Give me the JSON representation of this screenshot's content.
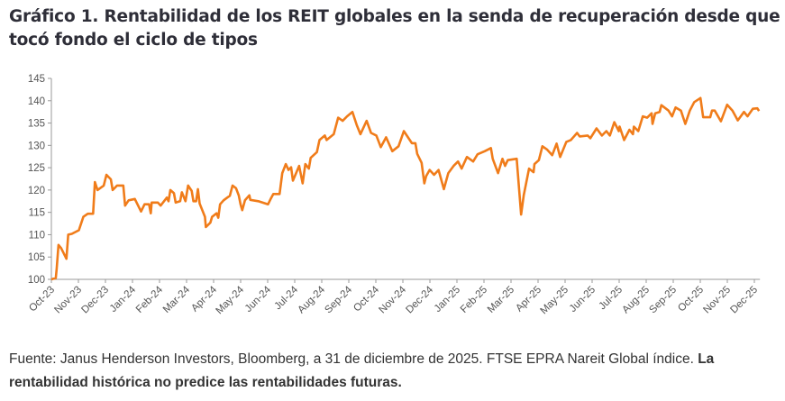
{
  "title": "Gráfico 1. Rentabilidad de los REIT globales en la senda de recuperación desde que tocó fondo el ciclo de tipos",
  "footer": {
    "source": "Fuente: Janus Henderson Investors, Bloomberg, a 31 de diciembre de 2025. FTSE EPRA Nareit Global índice. ",
    "disclaimer": "La rentabilidad histórica no predice las rentabilidades futuras."
  },
  "chart_data": {
    "type": "line",
    "title": "",
    "xlabel": "",
    "ylabel": "",
    "ylim": [
      100,
      145
    ],
    "yticks": [
      100,
      105,
      110,
      115,
      120,
      125,
      130,
      135,
      140,
      145
    ],
    "xlim": [
      "2023-10-01",
      "2025-12-06"
    ],
    "xtick_labels": [
      "Oct-23",
      "Nov-23",
      "Dec-23",
      "Jan-24",
      "Feb-24",
      "Mar-24",
      "Apr-24",
      "May-24",
      "Jun-24",
      "Jul-24",
      "Aug-24",
      "Sep-24",
      "Oct-24",
      "Nov-24",
      "Dec-24",
      "Jan-25",
      "Feb-25",
      "Mar-25",
      "Apr-25",
      "May-25",
      "Jun-25",
      "Jul-25",
      "Aug-25",
      "Sep-25",
      "Oct-25",
      "Nov-25",
      "Dec-25"
    ],
    "grid": false,
    "line_color": "#f07c1a",
    "series": [
      {
        "points": [
          [
            "2023-10-01",
            100
          ],
          [
            "2023-10-06",
            100.3
          ],
          [
            "2023-10-07",
            102.4
          ],
          [
            "2023-10-09",
            107.7
          ],
          [
            "2023-10-12",
            107
          ],
          [
            "2023-10-15",
            105.8
          ],
          [
            "2023-10-18",
            104.6
          ],
          [
            "2023-10-20",
            110
          ],
          [
            "2023-10-24",
            110.2
          ],
          [
            "2023-11-01",
            111
          ],
          [
            "2023-11-06",
            114
          ],
          [
            "2023-11-11",
            114.7
          ],
          [
            "2023-11-17",
            114.7
          ],
          [
            "2023-11-19",
            121.8
          ],
          [
            "2023-11-22",
            120
          ],
          [
            "2023-11-29",
            121
          ],
          [
            "2023-12-02",
            123.4
          ],
          [
            "2023-12-07",
            122.4
          ],
          [
            "2023-12-09",
            120
          ],
          [
            "2023-12-14",
            121
          ],
          [
            "2023-12-21",
            121
          ],
          [
            "2023-12-23",
            116.5
          ],
          [
            "2023-12-27",
            117.7
          ],
          [
            "2024-01-03",
            118
          ],
          [
            "2024-01-10",
            115.2
          ],
          [
            "2024-01-14",
            116.8
          ],
          [
            "2024-01-19",
            116.8
          ],
          [
            "2024-01-21",
            114.8
          ],
          [
            "2024-01-22",
            117.2
          ],
          [
            "2024-01-29",
            117.2
          ],
          [
            "2024-02-01",
            116.5
          ],
          [
            "2024-02-08",
            118.3
          ],
          [
            "2024-02-10",
            117.5
          ],
          [
            "2024-02-12",
            120
          ],
          [
            "2024-02-16",
            119.3
          ],
          [
            "2024-02-18",
            117.2
          ],
          [
            "2024-02-23",
            117.5
          ],
          [
            "2024-02-25",
            119.5
          ],
          [
            "2024-02-29",
            117.5
          ],
          [
            "2024-03-03",
            121
          ],
          [
            "2024-03-07",
            119.8
          ],
          [
            "2024-03-09",
            117.5
          ],
          [
            "2024-03-12",
            117.5
          ],
          [
            "2024-03-14",
            120.2
          ],
          [
            "2024-03-16",
            117
          ],
          [
            "2024-03-22",
            114
          ],
          [
            "2024-03-23",
            111.7
          ],
          [
            "2024-03-28",
            112.7
          ],
          [
            "2024-03-30",
            114
          ],
          [
            "2024-04-04",
            114.8
          ],
          [
            "2024-04-06",
            113.8
          ],
          [
            "2024-04-08",
            116.8
          ],
          [
            "2024-04-12",
            117.7
          ],
          [
            "2024-04-16",
            118.3
          ],
          [
            "2024-04-19",
            118.7
          ],
          [
            "2024-04-22",
            121
          ],
          [
            "2024-04-26",
            120.4
          ],
          [
            "2024-04-29",
            118.8
          ],
          [
            "2024-05-01",
            116.8
          ],
          [
            "2024-05-03",
            115.5
          ],
          [
            "2024-05-06",
            117.7
          ],
          [
            "2024-05-11",
            118.8
          ],
          [
            "2024-05-12",
            117.8
          ],
          [
            "2024-05-21",
            117.5
          ],
          [
            "2024-06-01",
            116.8
          ],
          [
            "2024-06-04",
            118
          ],
          [
            "2024-06-07",
            119.1
          ],
          [
            "2024-06-14",
            119.1
          ],
          [
            "2024-06-17",
            123.8
          ],
          [
            "2024-06-21",
            125.8
          ],
          [
            "2024-06-24",
            124.5
          ],
          [
            "2024-06-27",
            125.1
          ],
          [
            "2024-06-29",
            122.1
          ],
          [
            "2024-07-06",
            125.4
          ],
          [
            "2024-07-10",
            121.5
          ],
          [
            "2024-07-13",
            125.8
          ],
          [
            "2024-07-17",
            124.8
          ],
          [
            "2024-07-19",
            127.2
          ],
          [
            "2024-07-26",
            128.5
          ],
          [
            "2024-07-29",
            131.2
          ],
          [
            "2024-08-04",
            132.2
          ],
          [
            "2024-08-06",
            131.2
          ],
          [
            "2024-08-14",
            132.5
          ],
          [
            "2024-08-19",
            136.2
          ],
          [
            "2024-08-24",
            135.5
          ],
          [
            "2024-08-29",
            136.5
          ],
          [
            "2024-09-04",
            137.5
          ],
          [
            "2024-09-09",
            134.5
          ],
          [
            "2024-09-13",
            132.5
          ],
          [
            "2024-09-20",
            135.5
          ],
          [
            "2024-09-25",
            132.8
          ],
          [
            "2024-10-01",
            132.2
          ],
          [
            "2024-10-06",
            129.6
          ],
          [
            "2024-10-12",
            131.8
          ],
          [
            "2024-10-19",
            128.7
          ],
          [
            "2024-10-26",
            129.8
          ],
          [
            "2024-11-01",
            133.2
          ],
          [
            "2024-11-10",
            130.5
          ],
          [
            "2024-11-14",
            130.5
          ],
          [
            "2024-11-16",
            128.1
          ],
          [
            "2024-11-21",
            126.1
          ],
          [
            "2024-11-24",
            121.5
          ],
          [
            "2024-11-26",
            123.1
          ],
          [
            "2024-11-30",
            124.5
          ],
          [
            "2024-12-05",
            123.4
          ],
          [
            "2024-12-10",
            124.5
          ],
          [
            "2024-12-16",
            120.2
          ],
          [
            "2024-12-21",
            123.8
          ],
          [
            "2024-12-27",
            125.4
          ],
          [
            "2025-01-01",
            126.4
          ],
          [
            "2025-01-05",
            124.8
          ],
          [
            "2025-01-11",
            127.4
          ],
          [
            "2025-01-18",
            126.4
          ],
          [
            "2025-01-23",
            128
          ],
          [
            "2025-01-31",
            128.7
          ],
          [
            "2025-02-07",
            129.4
          ],
          [
            "2025-02-09",
            127
          ],
          [
            "2025-02-15",
            123.8
          ],
          [
            "2025-02-20",
            127
          ],
          [
            "2025-02-23",
            125.4
          ],
          [
            "2025-02-26",
            126.7
          ],
          [
            "2025-03-08",
            127
          ],
          [
            "2025-03-13",
            114.5
          ],
          [
            "2025-03-16",
            118.8
          ],
          [
            "2025-03-22",
            124.8
          ],
          [
            "2025-03-27",
            124
          ],
          [
            "2025-03-28",
            125.8
          ],
          [
            "2025-04-02",
            126.7
          ],
          [
            "2025-04-06",
            129.8
          ],
          [
            "2025-04-11",
            129.1
          ],
          [
            "2025-04-17",
            127.8
          ],
          [
            "2025-04-22",
            130.4
          ],
          [
            "2025-04-26",
            127.4
          ],
          [
            "2025-05-03",
            130.8
          ],
          [
            "2025-05-08",
            131.2
          ],
          [
            "2025-05-15",
            132.8
          ],
          [
            "2025-05-18",
            132
          ],
          [
            "2025-05-27",
            132.2
          ],
          [
            "2025-05-30",
            131.6
          ],
          [
            "2025-06-06",
            133.8
          ],
          [
            "2025-06-12",
            132.2
          ],
          [
            "2025-06-17",
            133.2
          ],
          [
            "2025-06-21",
            132.2
          ],
          [
            "2025-06-26",
            135.2
          ],
          [
            "2025-07-01",
            133.2
          ],
          [
            "2025-07-02",
            134.2
          ],
          [
            "2025-07-07",
            131.2
          ],
          [
            "2025-07-13",
            133.5
          ],
          [
            "2025-07-17",
            132.5
          ],
          [
            "2025-07-18",
            134.2
          ],
          [
            "2025-07-23",
            133.2
          ],
          [
            "2025-07-28",
            136.5
          ],
          [
            "2025-08-02",
            136.2
          ],
          [
            "2025-08-07",
            137.2
          ],
          [
            "2025-08-08",
            134.8
          ],
          [
            "2025-08-11",
            137.2
          ],
          [
            "2025-08-16",
            137.5
          ],
          [
            "2025-08-18",
            139
          ],
          [
            "2025-08-26",
            137.8
          ],
          [
            "2025-08-30",
            136.5
          ],
          [
            "2025-09-03",
            138.5
          ],
          [
            "2025-09-09",
            137.8
          ],
          [
            "2025-09-14",
            134.8
          ],
          [
            "2025-09-19",
            137.8
          ],
          [
            "2025-09-24",
            139.7
          ],
          [
            "2025-10-01",
            140.6
          ],
          [
            "2025-10-04",
            136.3
          ],
          [
            "2025-10-12",
            136.3
          ],
          [
            "2025-10-14",
            137.8
          ],
          [
            "2025-10-17",
            137.8
          ],
          [
            "2025-10-24",
            135.4
          ],
          [
            "2025-10-31",
            139.1
          ],
          [
            "2025-11-06",
            137.8
          ],
          [
            "2025-11-12",
            135.6
          ],
          [
            "2025-11-19",
            137.5
          ],
          [
            "2025-11-23",
            136.5
          ],
          [
            "2025-11-29",
            138.2
          ],
          [
            "2025-12-04",
            138.3
          ],
          [
            "2025-12-06",
            137.7
          ]
        ]
      }
    ]
  }
}
